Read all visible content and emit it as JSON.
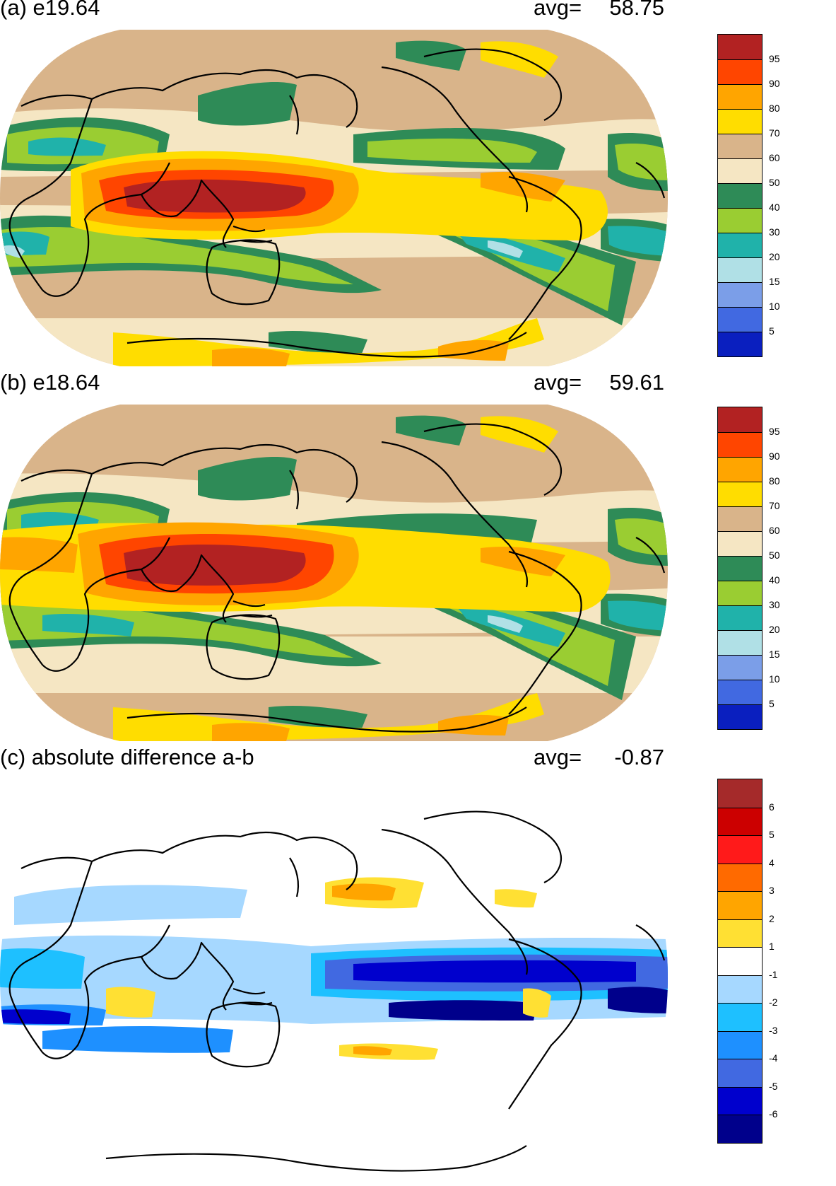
{
  "panels": [
    {
      "title": "(a) e19.64",
      "avg_label": "avg=",
      "avg_value": "58.75",
      "colorbar": {
        "labels": [
          "95",
          "90",
          "80",
          "70",
          "60",
          "50",
          "40",
          "30",
          "20",
          "15",
          "10",
          "5"
        ],
        "colors": [
          "#b22222",
          "#ff4500",
          "#ffa500",
          "#ffdd00",
          "#d9b48a",
          "#f5e6c3",
          "#2e8b57",
          "#9acd32",
          "#20b2aa",
          "#b0e0e6",
          "#7b9ee8",
          "#4169e1",
          "#0a1fbf"
        ]
      }
    },
    {
      "title": "(b) e18.64",
      "avg_label": "avg=",
      "avg_value": "59.61",
      "colorbar": {
        "labels": [
          "95",
          "90",
          "80",
          "70",
          "60",
          "50",
          "40",
          "30",
          "20",
          "15",
          "10",
          "5"
        ],
        "colors": [
          "#b22222",
          "#ff4500",
          "#ffa500",
          "#ffdd00",
          "#d9b48a",
          "#f5e6c3",
          "#2e8b57",
          "#9acd32",
          "#20b2aa",
          "#b0e0e6",
          "#7b9ee8",
          "#4169e1",
          "#0a1fbf"
        ]
      }
    },
    {
      "title": "(c) absolute difference a-b",
      "avg_label": "avg=",
      "avg_value": "-0.87",
      "colorbar": {
        "labels": [
          "6",
          "5",
          "4",
          "3",
          "2",
          "1",
          "-1",
          "-2",
          "-3",
          "-4",
          "-5",
          "-6"
        ],
        "colors": [
          "#a52a2a",
          "#cc0000",
          "#ff1a1a",
          "#ff6a00",
          "#ffa500",
          "#ffe033",
          "#ffffff",
          "#a6d8ff",
          "#1ec0ff",
          "#1e90ff",
          "#4169e1",
          "#0000cd",
          "#00008b"
        ]
      }
    }
  ]
}
